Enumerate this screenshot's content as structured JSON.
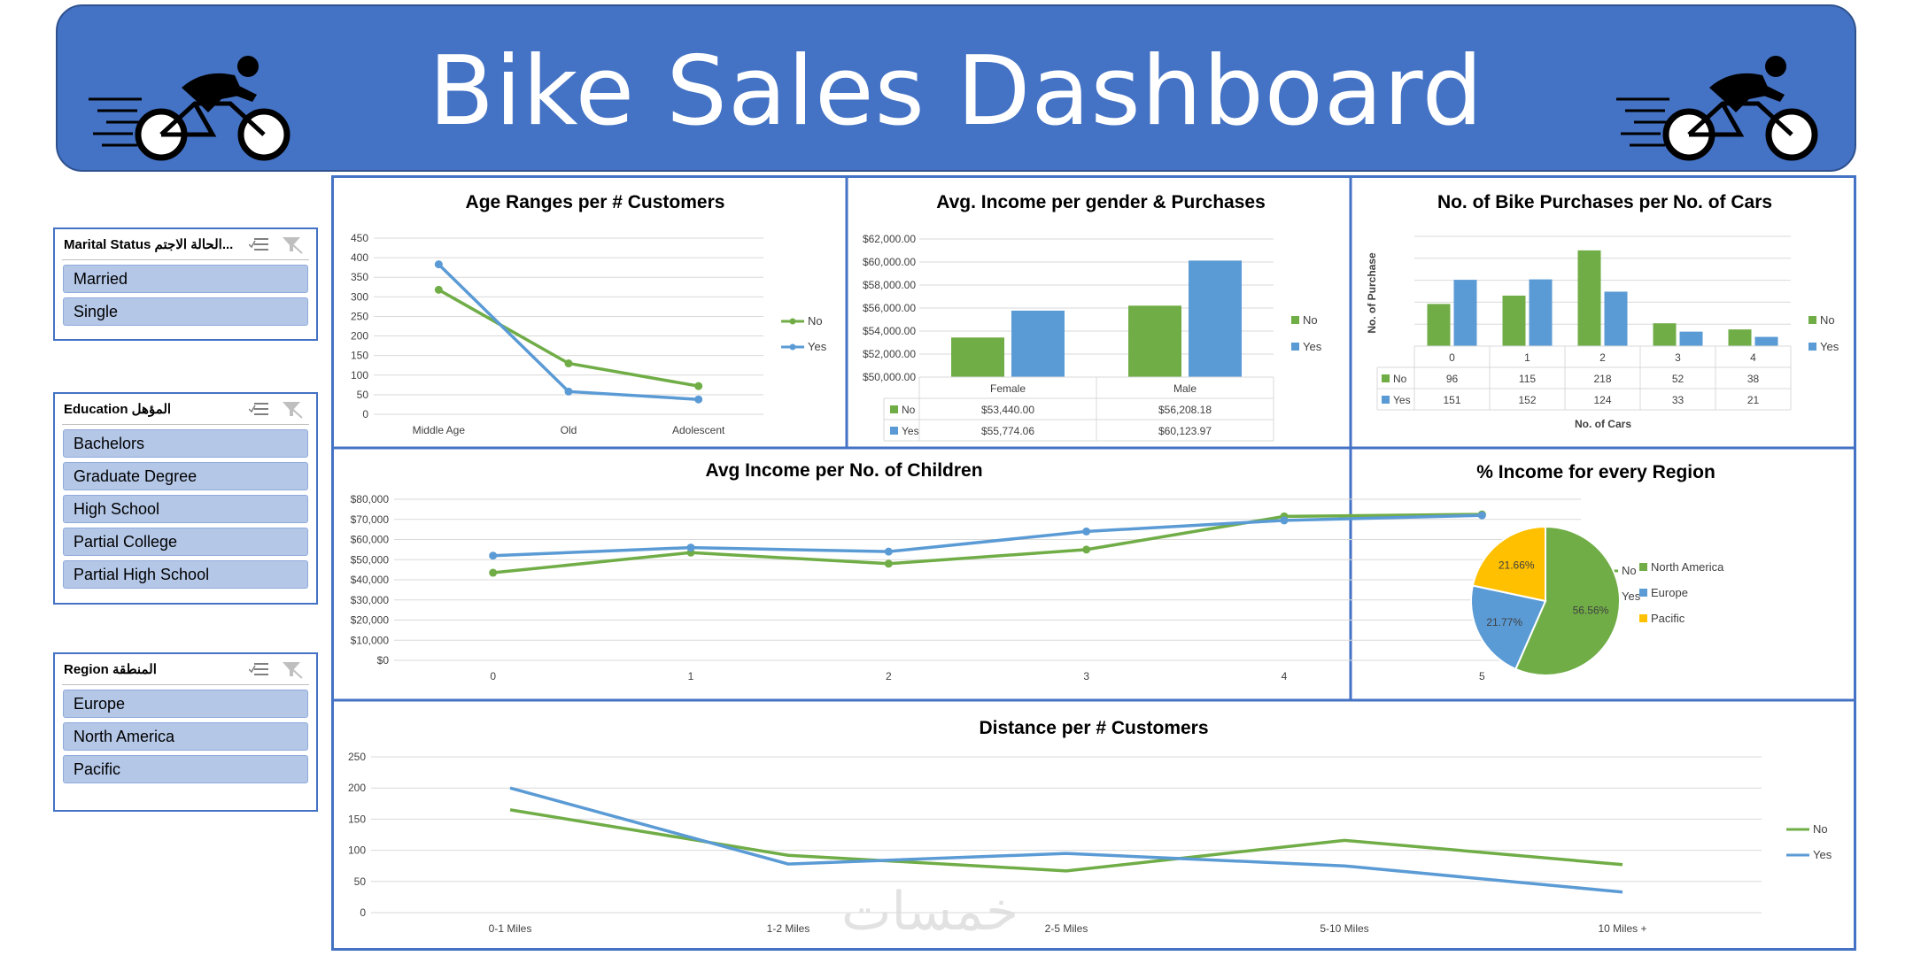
{
  "header": {
    "title": "Bike Sales Dashboard"
  },
  "slicers": [
    {
      "title": "Marital Status الحالة الاجتم...",
      "items": [
        "Married",
        "Single"
      ]
    },
    {
      "title": "Education المؤهل",
      "items": [
        "Bachelors",
        "Graduate Degree",
        "High School",
        "Partial College",
        "Partial High School"
      ]
    },
    {
      "title": "Region المنطقة",
      "items": [
        "Europe",
        "North America",
        "Pacific"
      ]
    }
  ],
  "colors": {
    "no": "#70AD47",
    "yes": "#5B9BD5",
    "accent": "#4472C4",
    "pacific": "#FFC000"
  },
  "watermark": "خمسات",
  "chart_data": [
    {
      "id": "age",
      "type": "line",
      "title": "Age Ranges per # Customers",
      "categories": [
        "Middle Age",
        "Old",
        "Adolescent"
      ],
      "series": [
        {
          "name": "No",
          "values": [
            318,
            130,
            72
          ]
        },
        {
          "name": "Yes",
          "values": [
            383,
            58,
            38
          ]
        }
      ],
      "ylim": [
        0,
        450
      ],
      "yticks": [
        "0",
        "50",
        "100",
        "150",
        "200",
        "250",
        "300",
        "350",
        "400",
        "450"
      ],
      "legend": "right"
    },
    {
      "id": "income",
      "type": "bar",
      "title": "Avg. Income per gender & Purchases",
      "categories": [
        "Female",
        "Male"
      ],
      "series": [
        {
          "name": "No",
          "values": [
            53440.0,
            56208.18
          ],
          "labels": [
            "$53,440.00",
            "$56,208.18"
          ]
        },
        {
          "name": "Yes",
          "values": [
            55774.06,
            60123.97
          ],
          "labels": [
            "$55,774.06",
            "$60,123.97"
          ]
        }
      ],
      "ylim": [
        50000,
        62000
      ],
      "yticks": [
        "$50,000.00",
        "$52,000.00",
        "$54,000.00",
        "$56,000.00",
        "$58,000.00",
        "$60,000.00",
        "$62,000.00"
      ],
      "legend": "right",
      "data_table": true
    },
    {
      "id": "cars",
      "type": "bar",
      "title": "No. of Bike Purchases per No. of Cars",
      "xlabel": "No. of Cars",
      "ylabel": "No. of Purchase",
      "categories": [
        "0",
        "1",
        "2",
        "3",
        "4"
      ],
      "series": [
        {
          "name": "No",
          "values": [
            96,
            115,
            218,
            52,
            38
          ]
        },
        {
          "name": "Yes",
          "values": [
            151,
            152,
            124,
            33,
            21
          ]
        }
      ],
      "ylim": [
        0,
        250
      ],
      "legend": "right",
      "data_table": true
    },
    {
      "id": "children",
      "type": "line",
      "title": "Avg Income per No. of Children",
      "categories": [
        "0",
        "1",
        "2",
        "3",
        "4",
        "5"
      ],
      "series": [
        {
          "name": "No",
          "values": [
            43500,
            53500,
            48000,
            55000,
            71500,
            72500
          ]
        },
        {
          "name": "Yes",
          "values": [
            52000,
            56000,
            54000,
            64000,
            69500,
            72000
          ]
        }
      ],
      "ylim": [
        0,
        80000
      ],
      "yticks": [
        "$0",
        "$10,000",
        "$20,000",
        "$30,000",
        "$40,000",
        "$50,000",
        "$60,000",
        "$70,000",
        "$80,000"
      ],
      "legend": "right"
    },
    {
      "id": "region",
      "type": "pie",
      "title": "% Income for every Region",
      "categories": [
        "North America",
        "Europe",
        "Pacific"
      ],
      "values": [
        56.56,
        21.77,
        21.66
      ],
      "labels": [
        "56.56%",
        "21.77%",
        "21.66%"
      ],
      "legend": "right"
    },
    {
      "id": "distance",
      "type": "line",
      "title": "Distance per # Customers",
      "categories": [
        "0-1 Miles",
        "1-2 Miles",
        "2-5 Miles",
        "5-10 Miles",
        "10 Miles +"
      ],
      "series": [
        {
          "name": "No",
          "values": [
            165,
            92,
            67,
            116,
            77
          ]
        },
        {
          "name": "Yes",
          "values": [
            200,
            78,
            95,
            75,
            33
          ]
        }
      ],
      "ylim": [
        0,
        250
      ],
      "yticks": [
        "0",
        "50",
        "100",
        "150",
        "200",
        "250"
      ],
      "legend": "right"
    }
  ]
}
